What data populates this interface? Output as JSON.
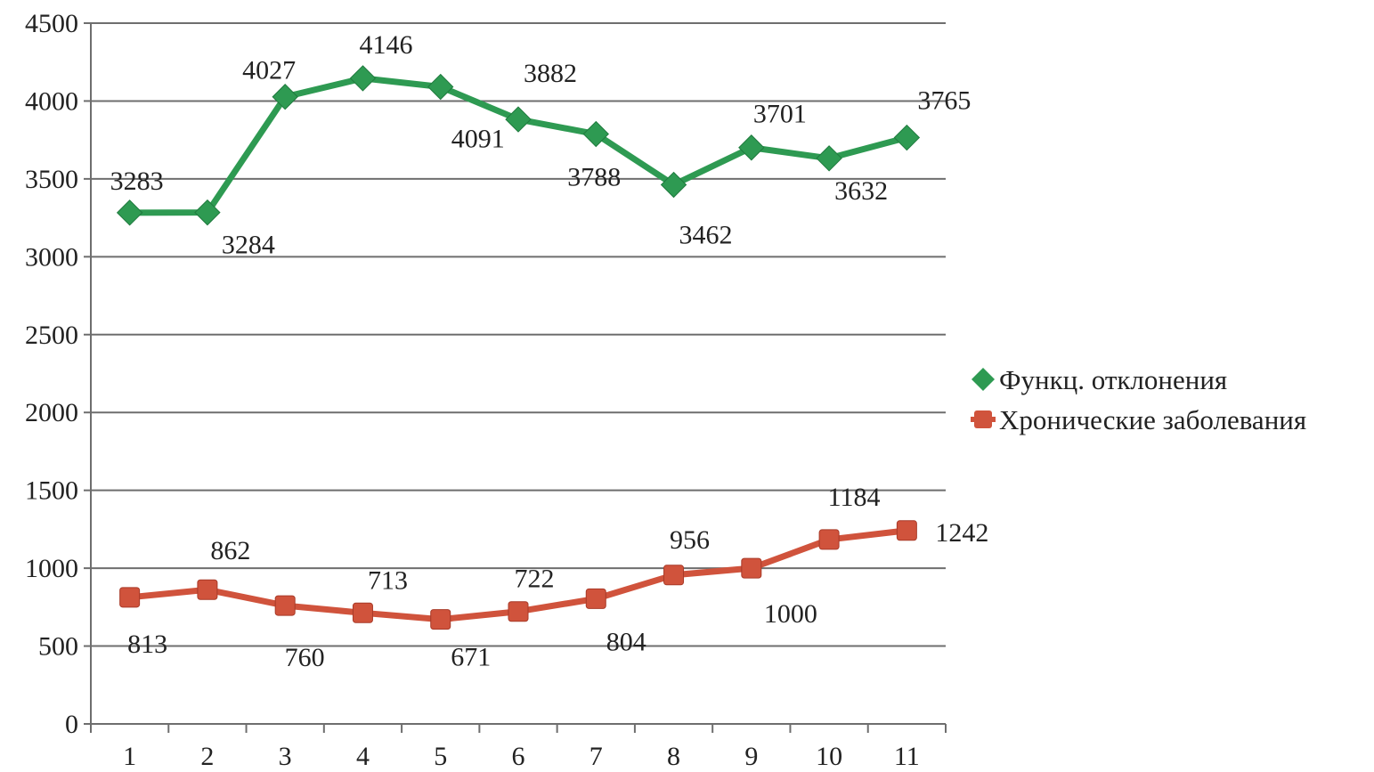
{
  "chart_data": {
    "type": "line",
    "title": "",
    "xlabel": "",
    "ylabel": "",
    "x": [
      1,
      2,
      3,
      4,
      5,
      6,
      7,
      8,
      9,
      10,
      11
    ],
    "ylim": [
      0,
      4500
    ],
    "yticks": [
      0,
      500,
      1000,
      1500,
      2000,
      2500,
      3000,
      3500,
      4000,
      4500
    ],
    "grid": true,
    "legend_position": "right",
    "series": [
      {
        "name": "Функц. отклонения",
        "color": "#2e9a52",
        "marker": "diamond",
        "values": [
          3283,
          3284,
          4027,
          4146,
          4091,
          3882,
          3788,
          3462,
          3701,
          3632,
          3765
        ],
        "labels": [
          "3283",
          "3284",
          "4027",
          "4146",
          "4091",
          "3882",
          "3788",
          "3462",
          "3701",
          "3632",
          "3765"
        ]
      },
      {
        "name": "Хронические заболевания",
        "color": "#d0533c",
        "marker": "square",
        "values": [
          813,
          862,
          760,
          713,
          671,
          722,
          804,
          956,
          1000,
          1184,
          1242
        ],
        "labels": [
          "813",
          "862",
          "760",
          "713",
          "671",
          "722",
          "804",
          "956",
          "1000",
          "1184",
          "1242"
        ]
      }
    ]
  }
}
